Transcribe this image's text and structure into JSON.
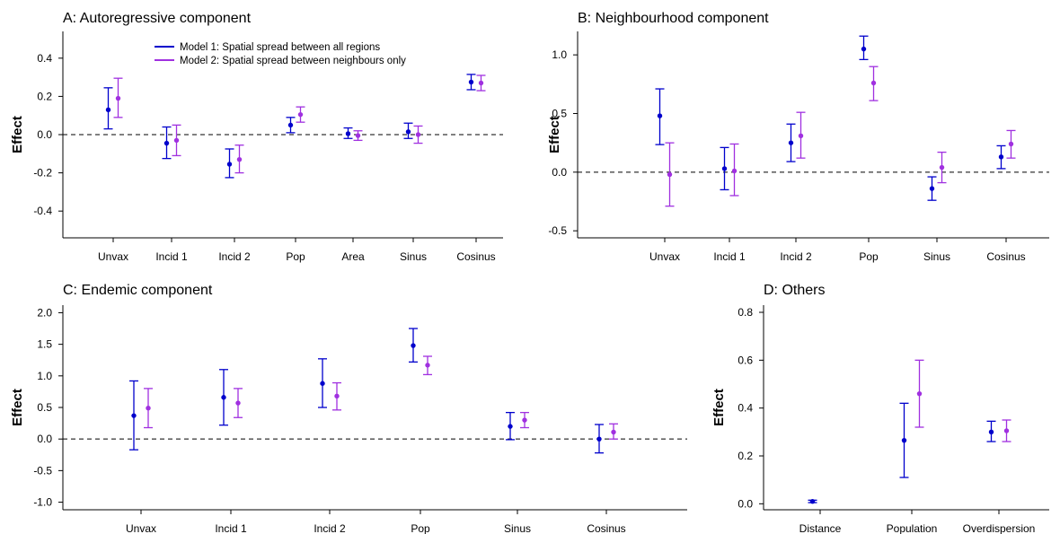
{
  "colors": {
    "model1": "#0000cc",
    "model2": "#a030e0"
  },
  "legend": {
    "model1": "Model 1: Spatial spread between all regions",
    "model2": "Model 2: Spatial spread between neighbours only"
  },
  "chart_data": [
    {
      "type": "errorbar",
      "title": "A: Autoregressive component",
      "ylabel": "Effect",
      "ylim": [
        -0.54,
        0.54
      ],
      "yticks": [
        -0.4,
        -0.2,
        0.0,
        0.2,
        0.4
      ],
      "ytick_labels": [
        "-0.4",
        "-0.2",
        "0.0",
        "0.2",
        "0.4"
      ],
      "reference_line": 0,
      "categories": [
        "Unvax",
        "Incid 1",
        "Incid 2",
        "Pop",
        "Area",
        "Sinus",
        "Cosinus"
      ],
      "series": [
        {
          "key": "model1",
          "estimate": [
            0.13,
            -0.045,
            -0.155,
            0.05,
            0.005,
            0.015,
            0.275
          ],
          "lower": [
            0.03,
            -0.125,
            -0.225,
            0.01,
            -0.02,
            -0.02,
            0.235
          ],
          "upper": [
            0.245,
            0.04,
            -0.075,
            0.09,
            0.035,
            0.06,
            0.315
          ]
        },
        {
          "key": "model2",
          "estimate": [
            0.19,
            -0.03,
            -0.13,
            0.105,
            -0.005,
            0.0,
            0.27
          ],
          "lower": [
            0.09,
            -0.11,
            -0.2,
            0.065,
            -0.03,
            -0.045,
            0.23
          ],
          "upper": [
            0.295,
            0.05,
            -0.055,
            0.145,
            0.02,
            0.045,
            0.31
          ]
        }
      ]
    },
    {
      "type": "errorbar",
      "title": "B: Neighbourhood component",
      "ylabel": "Effect",
      "ylim": [
        -0.56,
        1.2
      ],
      "yticks": [
        -0.5,
        0.0,
        0.5,
        1.0
      ],
      "ytick_labels": [
        "-0.5",
        "0.0",
        "0.5",
        "1.0"
      ],
      "reference_line": 0,
      "categories": [
        "Unvax",
        "Incid 1",
        "Incid 2",
        "Pop",
        "Sinus",
        "Cosinus"
      ],
      "series": [
        {
          "key": "model1",
          "estimate": [
            0.48,
            0.03,
            0.25,
            1.05,
            -0.14,
            0.13
          ],
          "lower": [
            0.235,
            -0.15,
            0.09,
            0.96,
            -0.24,
            0.03
          ],
          "upper": [
            0.71,
            0.21,
            0.41,
            1.16,
            -0.04,
            0.225
          ]
        },
        {
          "key": "model2",
          "estimate": [
            -0.02,
            0.01,
            0.31,
            0.76,
            0.04,
            0.24
          ],
          "lower": [
            -0.29,
            -0.2,
            0.12,
            0.61,
            -0.09,
            0.12
          ],
          "upper": [
            0.25,
            0.24,
            0.51,
            0.9,
            0.17,
            0.355
          ]
        }
      ]
    },
    {
      "type": "errorbar",
      "title": "C: Endemic component",
      "ylabel": "Effect",
      "ylim": [
        -1.12,
        2.12
      ],
      "yticks": [
        -1.0,
        -0.5,
        0.0,
        0.5,
        1.0,
        1.5,
        2.0
      ],
      "ytick_labels": [
        "-1.0",
        "-0.5",
        "0.0",
        "0.5",
        "1.0",
        "1.5",
        "2.0"
      ],
      "reference_line": 0,
      "categories": [
        "Unvax",
        "Incid 1",
        "Incid 2",
        "Pop",
        "Sinus",
        "Cosinus"
      ],
      "series": [
        {
          "key": "model1",
          "estimate": [
            0.37,
            0.66,
            0.88,
            1.48,
            0.2,
            0.0
          ],
          "lower": [
            -0.17,
            0.22,
            0.5,
            1.22,
            -0.01,
            -0.22
          ],
          "upper": [
            0.92,
            1.1,
            1.27,
            1.75,
            0.42,
            0.23
          ]
        },
        {
          "key": "model2",
          "estimate": [
            0.49,
            0.57,
            0.68,
            1.17,
            0.3,
            0.11
          ],
          "lower": [
            0.18,
            0.34,
            0.46,
            1.02,
            0.18,
            0.0
          ],
          "upper": [
            0.8,
            0.8,
            0.89,
            1.31,
            0.42,
            0.24
          ]
        }
      ]
    },
    {
      "type": "errorbar",
      "title": "D: Others",
      "ylabel": "Effect",
      "ylim": [
        -0.025,
        0.83
      ],
      "yticks": [
        0.0,
        0.2,
        0.4,
        0.6,
        0.8
      ],
      "ytick_labels": [
        "0.0",
        "0.2",
        "0.4",
        "0.6",
        "0.8"
      ],
      "categories": [
        "Distance",
        "Population",
        "Overdispersion"
      ],
      "series": [
        {
          "key": "model1",
          "estimate": [
            0.01,
            0.265,
            0.3
          ],
          "lower": [
            0.005,
            0.11,
            0.26
          ],
          "upper": [
            0.015,
            0.42,
            0.345
          ]
        },
        {
          "key": "model2",
          "estimate": [
            null,
            0.46,
            0.305
          ],
          "lower": [
            null,
            0.32,
            0.26
          ],
          "upper": [
            null,
            0.6,
            0.35
          ]
        }
      ]
    }
  ]
}
